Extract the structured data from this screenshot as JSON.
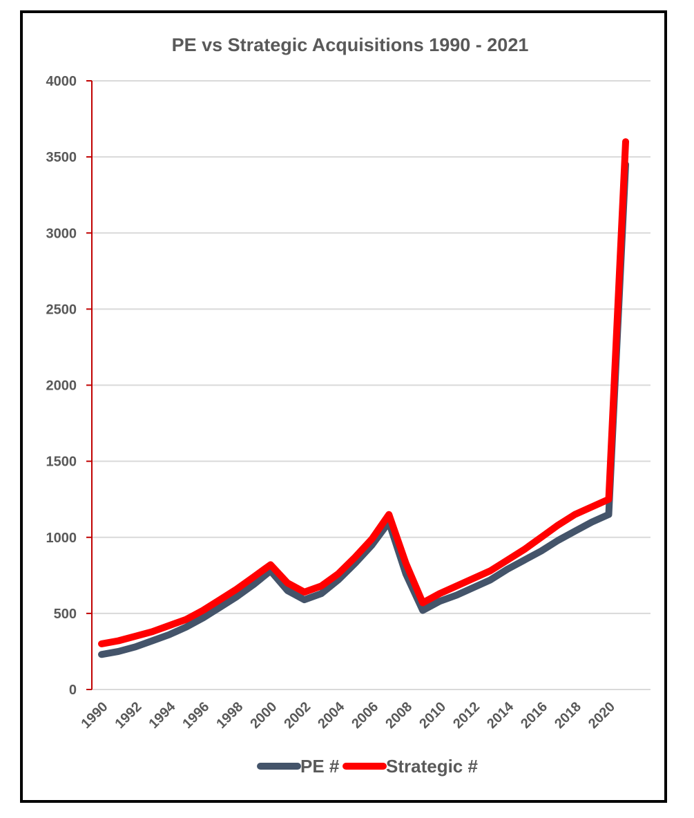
{
  "chart_data": {
    "type": "line",
    "title": "PE vs Strategic Acquisitions 1990 - 2021",
    "x": [
      1990,
      1991,
      1992,
      1993,
      1994,
      1995,
      1996,
      1997,
      1998,
      1999,
      2000,
      2001,
      2002,
      2003,
      2004,
      2005,
      2006,
      2007,
      2008,
      2009,
      2010,
      2011,
      2012,
      2013,
      2014,
      2015,
      2016,
      2017,
      2018,
      2019,
      2020,
      2021
    ],
    "x_tick_labels": [
      "1990",
      "1992",
      "1994",
      "1996",
      "1998",
      "2000",
      "2002",
      "2004",
      "2006",
      "2008",
      "2010",
      "2012",
      "2014",
      "2016",
      "2018",
      "2020"
    ],
    "series": [
      {
        "name": "PE #",
        "color": "#44546A",
        "values": [
          230,
          250,
          280,
          320,
          360,
          410,
          470,
          540,
          610,
          690,
          780,
          650,
          590,
          630,
          720,
          830,
          950,
          1100,
          760,
          520,
          580,
          620,
          670,
          720,
          790,
          850,
          910,
          980,
          1040,
          1100,
          1150,
          3450
        ]
      },
      {
        "name": "Strategic #",
        "color": "#FF0000",
        "values": [
          300,
          320,
          350,
          380,
          420,
          460,
          520,
          590,
          660,
          740,
          820,
          700,
          640,
          680,
          760,
          870,
          990,
          1150,
          830,
          570,
          630,
          680,
          730,
          780,
          850,
          920,
          1000,
          1080,
          1150,
          1200,
          1250,
          3600
        ]
      }
    ],
    "ylim": [
      0,
      4000
    ],
    "y_ticks": [
      0,
      500,
      1000,
      1500,
      2000,
      2500,
      3000,
      3500,
      4000
    ],
    "grid": true,
    "axis_color": "#C00000",
    "grid_color": "#D9D9D9",
    "legend_position": "bottom"
  }
}
